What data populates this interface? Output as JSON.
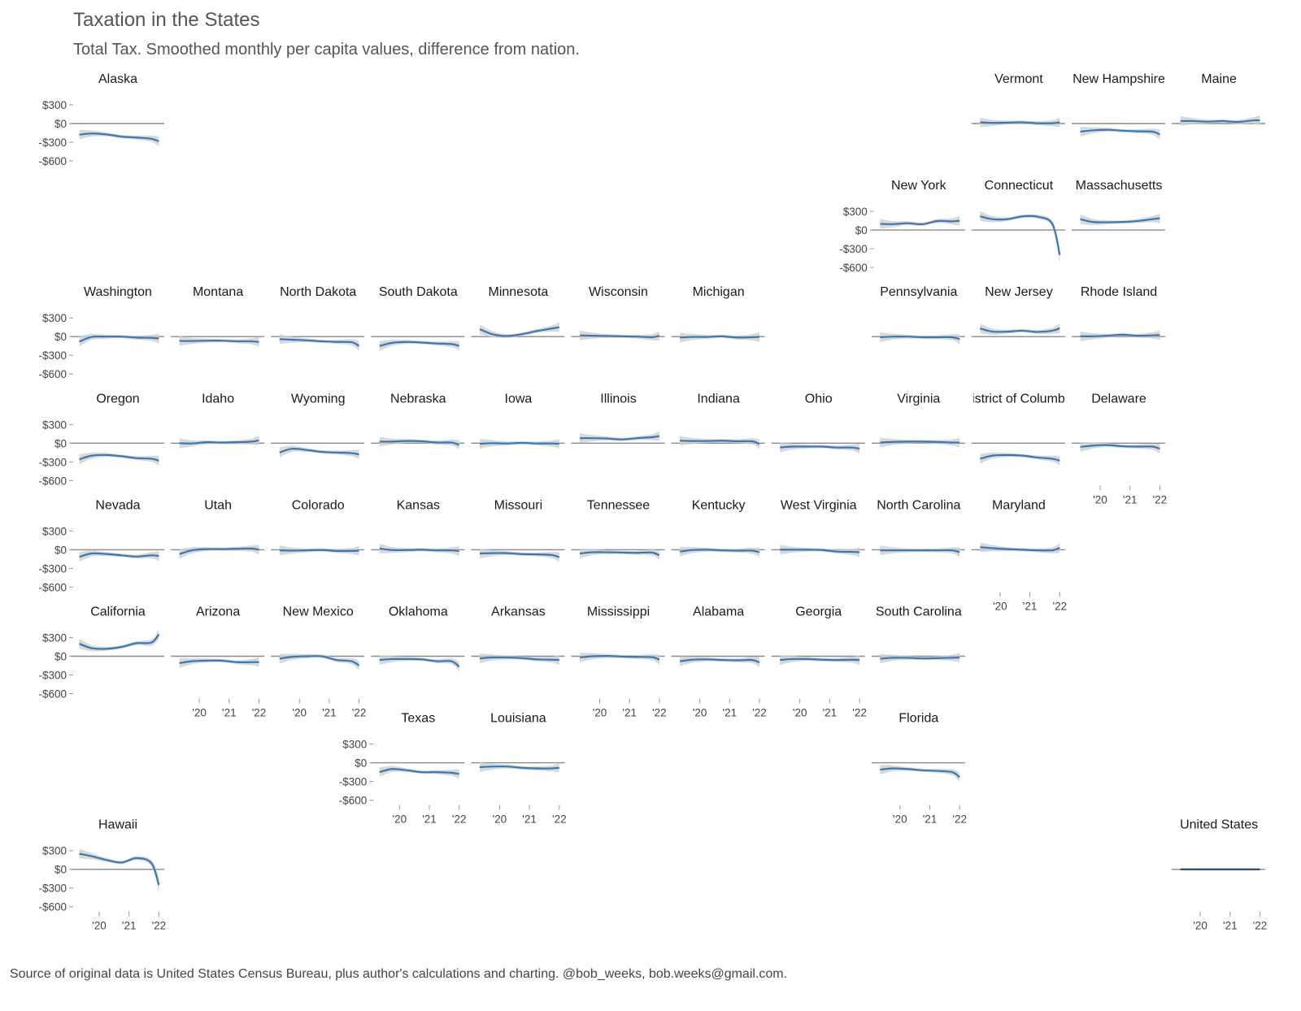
{
  "chart_data": {
    "type": "line",
    "title": "Taxation in the States",
    "subtitle": "Total Tax. Smoothed monthly per capita values, difference from nation.",
    "caption": "Source of original data is United States Census Bureau, plus author's calculations and charting. @bob_weeks, bob.weeks@gmail.com.",
    "x": [
      "2019-05",
      "2019-10",
      "2020-04",
      "2020-10",
      "2021-04",
      "2021-10",
      "2022-01"
    ],
    "x_ticks": [
      {
        "value": 2020,
        "label": "'20"
      },
      {
        "value": 2021,
        "label": "'21"
      },
      {
        "value": 2022,
        "label": "'22"
      }
    ],
    "y_ticks": [
      {
        "value": 300,
        "label": "$300"
      },
      {
        "value": 0,
        "label": "$0"
      },
      {
        "value": -300,
        "label": "-$300"
      },
      {
        "value": -600,
        "label": "-$600"
      }
    ],
    "ylim": [
      -700,
      450
    ],
    "grid": false,
    "colors": {
      "line": "#3a78b5",
      "nation_line": "#1f3b63",
      "band": "#cfcfcf",
      "zero_line": "#8a8a8a"
    },
    "series": [
      {
        "name": "Alaska",
        "values": [
          -180,
          -160,
          -175,
          -210,
          -225,
          -245,
          -285
        ]
      },
      {
        "name": "Vermont",
        "values": [
          20,
          10,
          15,
          20,
          5,
          5,
          20
        ]
      },
      {
        "name": "New Hampshire",
        "values": [
          -130,
          -110,
          -100,
          -115,
          -125,
          -130,
          -175
        ]
      },
      {
        "name": "Maine",
        "values": [
          40,
          40,
          30,
          40,
          25,
          50,
          50
        ]
      },
      {
        "name": "New York",
        "values": [
          100,
          95,
          110,
          95,
          145,
          140,
          150
        ]
      },
      {
        "name": "Connecticut",
        "values": [
          220,
          175,
          175,
          220,
          215,
          100,
          -400
        ]
      },
      {
        "name": "Massachusetts",
        "values": [
          175,
          130,
          125,
          130,
          145,
          175,
          190
        ]
      },
      {
        "name": "Washington",
        "values": [
          -80,
          -5,
          0,
          0,
          -15,
          -20,
          -30
        ]
      },
      {
        "name": "Montana",
        "values": [
          -70,
          -70,
          -65,
          -65,
          -75,
          -75,
          -85
        ]
      },
      {
        "name": "North Dakota",
        "values": [
          -40,
          -50,
          -60,
          -75,
          -85,
          -90,
          -150
        ]
      },
      {
        "name": "South Dakota",
        "values": [
          -150,
          -100,
          -85,
          -95,
          -110,
          -120,
          -150
        ]
      },
      {
        "name": "Minnesota",
        "values": [
          120,
          40,
          10,
          40,
          90,
          130,
          150
        ]
      },
      {
        "name": "Wisconsin",
        "values": [
          20,
          15,
          10,
          5,
          0,
          -10,
          15
        ]
      },
      {
        "name": "Michigan",
        "values": [
          -15,
          -5,
          -5,
          5,
          -15,
          -10,
          -5
        ]
      },
      {
        "name": "Pennsylvania",
        "values": [
          -10,
          0,
          0,
          -10,
          -10,
          -10,
          -40
        ]
      },
      {
        "name": "New Jersey",
        "values": [
          130,
          80,
          80,
          95,
          75,
          95,
          135
        ]
      },
      {
        "name": "Rhode Island",
        "values": [
          5,
          5,
          15,
          30,
          15,
          20,
          25
        ]
      },
      {
        "name": "Oregon",
        "values": [
          -260,
          -200,
          -190,
          -210,
          -240,
          -250,
          -280
        ]
      },
      {
        "name": "Idaho",
        "values": [
          0,
          -5,
          15,
          10,
          15,
          25,
          45
        ]
      },
      {
        "name": "Wyoming",
        "values": [
          -150,
          -90,
          -110,
          -140,
          -150,
          -160,
          -180
        ]
      },
      {
        "name": "Nebraska",
        "values": [
          25,
          25,
          35,
          30,
          10,
          10,
          -30
        ]
      },
      {
        "name": "Iowa",
        "values": [
          -10,
          0,
          -5,
          5,
          -5,
          -5,
          -10
        ]
      },
      {
        "name": "Illinois",
        "values": [
          80,
          80,
          75,
          60,
          80,
          95,
          115
        ]
      },
      {
        "name": "Indiana",
        "values": [
          40,
          35,
          35,
          40,
          30,
          30,
          -15
        ]
      },
      {
        "name": "Ohio",
        "values": [
          -70,
          -55,
          -55,
          -55,
          -70,
          -70,
          -90
        ]
      },
      {
        "name": "Virginia",
        "values": [
          10,
          20,
          25,
          25,
          20,
          10,
          10
        ]
      },
      {
        "name": "District of Columbia",
        "values": [
          -250,
          -200,
          -190,
          -200,
          -230,
          -250,
          -280
        ]
      },
      {
        "name": "Delaware",
        "values": [
          -60,
          -40,
          -30,
          -50,
          -55,
          -55,
          -90
        ]
      },
      {
        "name": "Nevada",
        "values": [
          -115,
          -60,
          -70,
          -90,
          -110,
          -90,
          -100
        ]
      },
      {
        "name": "Utah",
        "values": [
          -70,
          -10,
          10,
          10,
          15,
          20,
          0
        ]
      },
      {
        "name": "Colorado",
        "values": [
          -10,
          -15,
          -10,
          -5,
          -20,
          -20,
          -15
        ]
      },
      {
        "name": "Kansas",
        "values": [
          20,
          -5,
          -5,
          0,
          -10,
          -10,
          -20
        ]
      },
      {
        "name": "Missouri",
        "values": [
          -60,
          -55,
          -55,
          -70,
          -75,
          -85,
          -120
        ]
      },
      {
        "name": "Tennessee",
        "values": [
          -60,
          -40,
          -40,
          -45,
          -50,
          -45,
          -90
        ]
      },
      {
        "name": "Kentucky",
        "values": [
          -30,
          -5,
          0,
          -10,
          -15,
          -15,
          -40
        ]
      },
      {
        "name": "West Virginia",
        "values": [
          0,
          0,
          0,
          -5,
          -30,
          -35,
          -40
        ]
      },
      {
        "name": "North Carolina",
        "values": [
          -10,
          -10,
          -10,
          -10,
          -10,
          -10,
          -40
        ]
      },
      {
        "name": "Maryland",
        "values": [
          40,
          25,
          10,
          0,
          -10,
          -10,
          30
        ]
      },
      {
        "name": "California",
        "values": [
          200,
          130,
          120,
          150,
          210,
          220,
          350
        ]
      },
      {
        "name": "Arizona",
        "values": [
          -110,
          -80,
          -70,
          -70,
          -95,
          -95,
          -95
        ]
      },
      {
        "name": "New Mexico",
        "values": [
          -40,
          -10,
          0,
          0,
          -60,
          -80,
          -150
        ]
      },
      {
        "name": "Oklahoma",
        "values": [
          -60,
          -45,
          -45,
          -50,
          -80,
          -80,
          -170
        ]
      },
      {
        "name": "Arkansas",
        "values": [
          -35,
          -20,
          -20,
          -30,
          -50,
          -55,
          -60
        ]
      },
      {
        "name": "Mississippi",
        "values": [
          -20,
          0,
          5,
          -5,
          -10,
          -15,
          -55
        ]
      },
      {
        "name": "Alabama",
        "values": [
          -80,
          -55,
          -50,
          -60,
          -65,
          -60,
          -100
        ]
      },
      {
        "name": "Georgia",
        "values": [
          -60,
          -45,
          -45,
          -55,
          -60,
          -55,
          -60
        ]
      },
      {
        "name": "South Carolina",
        "values": [
          -40,
          -25,
          -25,
          -35,
          -30,
          -25,
          -20
        ]
      },
      {
        "name": "Texas",
        "values": [
          -150,
          -100,
          -120,
          -150,
          -150,
          -160,
          -180
        ]
      },
      {
        "name": "Louisiana",
        "values": [
          -70,
          -60,
          -60,
          -80,
          -90,
          -90,
          -80
        ]
      },
      {
        "name": "Florida",
        "values": [
          -110,
          -90,
          -100,
          -120,
          -130,
          -150,
          -230
        ]
      },
      {
        "name": "Hawaii",
        "values": [
          250,
          210,
          150,
          110,
          180,
          100,
          -250
        ]
      },
      {
        "name": "United States",
        "values": [
          0,
          0,
          0,
          0,
          0,
          0,
          0
        ]
      }
    ]
  }
}
